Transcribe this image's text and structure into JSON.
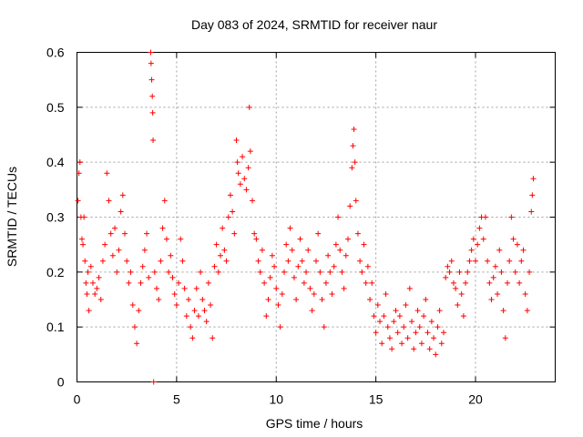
{
  "chart_data": {
    "type": "scatter",
    "title": "Day 083 of 2024, SRMTID for receiver naur",
    "xlabel": "GPS time / hours",
    "ylabel": "SRMTID / TECUs",
    "xlim": [
      0,
      24
    ],
    "ylim": [
      0,
      0.6
    ],
    "x_ticks": [
      0,
      5,
      10,
      15,
      20
    ],
    "y_ticks": [
      0,
      0.1,
      0.2,
      0.3,
      0.4,
      0.5,
      0.6
    ],
    "grid": true,
    "legend": "none",
    "marker": "+",
    "color": "#ff0000",
    "series": [
      {
        "name": "SRMTID",
        "points": [
          [
            0.05,
            0.33
          ],
          [
            0.1,
            0.38
          ],
          [
            0.15,
            0.4
          ],
          [
            0.2,
            0.3
          ],
          [
            0.25,
            0.26
          ],
          [
            0.3,
            0.25
          ],
          [
            0.35,
            0.3
          ],
          [
            0.4,
            0.22
          ],
          [
            0.45,
            0.18
          ],
          [
            0.5,
            0.16
          ],
          [
            0.55,
            0.2
          ],
          [
            0.6,
            0.13
          ],
          [
            0.7,
            0.21
          ],
          [
            0.8,
            0.18
          ],
          [
            0.9,
            0.16
          ],
          [
            1.0,
            0.17
          ],
          [
            1.1,
            0.19
          ],
          [
            1.2,
            0.15
          ],
          [
            1.3,
            0.22
          ],
          [
            1.4,
            0.25
          ],
          [
            1.5,
            0.38
          ],
          [
            1.6,
            0.33
          ],
          [
            1.7,
            0.27
          ],
          [
            1.8,
            0.23
          ],
          [
            1.9,
            0.28
          ],
          [
            2.0,
            0.2
          ],
          [
            2.1,
            0.24
          ],
          [
            2.2,
            0.31
          ],
          [
            2.3,
            0.34
          ],
          [
            2.4,
            0.27
          ],
          [
            2.5,
            0.22
          ],
          [
            2.6,
            0.18
          ],
          [
            2.7,
            0.2
          ],
          [
            2.8,
            0.14
          ],
          [
            2.9,
            0.1
          ],
          [
            3.0,
            0.07
          ],
          [
            3.1,
            0.13
          ],
          [
            3.2,
            0.18
          ],
          [
            3.3,
            0.21
          ],
          [
            3.4,
            0.24
          ],
          [
            3.5,
            0.27
          ],
          [
            3.6,
            0.19
          ],
          [
            3.7,
            0.6
          ],
          [
            3.72,
            0.58
          ],
          [
            3.75,
            0.55
          ],
          [
            3.78,
            0.52
          ],
          [
            3.8,
            0.49
          ],
          [
            3.82,
            0.44
          ],
          [
            3.85,
            0.0
          ],
          [
            3.9,
            0.2
          ],
          [
            4.0,
            0.17
          ],
          [
            4.1,
            0.15
          ],
          [
            4.2,
            0.22
          ],
          [
            4.3,
            0.28
          ],
          [
            4.4,
            0.33
          ],
          [
            4.5,
            0.26
          ],
          [
            4.6,
            0.2
          ],
          [
            4.7,
            0.23
          ],
          [
            4.8,
            0.19
          ],
          [
            4.9,
            0.16
          ],
          [
            5.0,
            0.14
          ],
          [
            5.1,
            0.18
          ],
          [
            5.2,
            0.26
          ],
          [
            5.3,
            0.22
          ],
          [
            5.4,
            0.17
          ],
          [
            5.5,
            0.12
          ],
          [
            5.6,
            0.15
          ],
          [
            5.7,
            0.1
          ],
          [
            5.8,
            0.08
          ],
          [
            5.9,
            0.13
          ],
          [
            6.0,
            0.17
          ],
          [
            6.1,
            0.12
          ],
          [
            6.2,
            0.2
          ],
          [
            6.3,
            0.15
          ],
          [
            6.4,
            0.13
          ],
          [
            6.5,
            0.11
          ],
          [
            6.6,
            0.18
          ],
          [
            6.7,
            0.14
          ],
          [
            6.8,
            0.08
          ],
          [
            6.9,
            0.21
          ],
          [
            7.0,
            0.25
          ],
          [
            7.1,
            0.2
          ],
          [
            7.2,
            0.23
          ],
          [
            7.3,
            0.28
          ],
          [
            7.4,
            0.24
          ],
          [
            7.5,
            0.22
          ],
          [
            7.6,
            0.3
          ],
          [
            7.7,
            0.34
          ],
          [
            7.8,
            0.31
          ],
          [
            7.9,
            0.27
          ],
          [
            8.0,
            0.44
          ],
          [
            8.05,
            0.4
          ],
          [
            8.1,
            0.38
          ],
          [
            8.2,
            0.36
          ],
          [
            8.3,
            0.41
          ],
          [
            8.4,
            0.37
          ],
          [
            8.5,
            0.35
          ],
          [
            8.6,
            0.39
          ],
          [
            8.65,
            0.5
          ],
          [
            8.7,
            0.42
          ],
          [
            8.8,
            0.33
          ],
          [
            8.9,
            0.27
          ],
          [
            9.0,
            0.26
          ],
          [
            9.1,
            0.22
          ],
          [
            9.2,
            0.2
          ],
          [
            9.3,
            0.24
          ],
          [
            9.4,
            0.18
          ],
          [
            9.5,
            0.12
          ],
          [
            9.6,
            0.15
          ],
          [
            9.7,
            0.19
          ],
          [
            9.8,
            0.23
          ],
          [
            9.9,
            0.21
          ],
          [
            10.0,
            0.17
          ],
          [
            10.1,
            0.14
          ],
          [
            10.2,
            0.1
          ],
          [
            10.3,
            0.16
          ],
          [
            10.4,
            0.2
          ],
          [
            10.5,
            0.25
          ],
          [
            10.6,
            0.22
          ],
          [
            10.7,
            0.28
          ],
          [
            10.8,
            0.24
          ],
          [
            10.9,
            0.19
          ],
          [
            11.0,
            0.15
          ],
          [
            11.1,
            0.21
          ],
          [
            11.2,
            0.26
          ],
          [
            11.3,
            0.22
          ],
          [
            11.4,
            0.18
          ],
          [
            11.5,
            0.2
          ],
          [
            11.6,
            0.24
          ],
          [
            11.7,
            0.17
          ],
          [
            11.8,
            0.13
          ],
          [
            11.9,
            0.16
          ],
          [
            12.0,
            0.22
          ],
          [
            12.1,
            0.27
          ],
          [
            12.2,
            0.2
          ],
          [
            12.3,
            0.15
          ],
          [
            12.4,
            0.1
          ],
          [
            12.5,
            0.18
          ],
          [
            12.6,
            0.23
          ],
          [
            12.7,
            0.2
          ],
          [
            12.8,
            0.16
          ],
          [
            12.9,
            0.21
          ],
          [
            13.0,
            0.25
          ],
          [
            13.1,
            0.3
          ],
          [
            13.2,
            0.24
          ],
          [
            13.3,
            0.2
          ],
          [
            13.4,
            0.17
          ],
          [
            13.5,
            0.23
          ],
          [
            13.6,
            0.26
          ],
          [
            13.7,
            0.32
          ],
          [
            13.8,
            0.39
          ],
          [
            13.85,
            0.43
          ],
          [
            13.9,
            0.46
          ],
          [
            13.95,
            0.4
          ],
          [
            14.0,
            0.33
          ],
          [
            14.1,
            0.27
          ],
          [
            14.2,
            0.22
          ],
          [
            14.3,
            0.2
          ],
          [
            14.4,
            0.25
          ],
          [
            14.5,
            0.18
          ],
          [
            14.6,
            0.21
          ],
          [
            14.7,
            0.15
          ],
          [
            14.8,
            0.18
          ],
          [
            14.9,
            0.12
          ],
          [
            15.0,
            0.09
          ],
          [
            15.1,
            0.14
          ],
          [
            15.2,
            0.11
          ],
          [
            15.3,
            0.07
          ],
          [
            15.4,
            0.12
          ],
          [
            15.5,
            0.16
          ],
          [
            15.6,
            0.1
          ],
          [
            15.7,
            0.08
          ],
          [
            15.8,
            0.06
          ],
          [
            15.9,
            0.11
          ],
          [
            16.0,
            0.13
          ],
          [
            16.1,
            0.09
          ],
          [
            16.2,
            0.12
          ],
          [
            16.3,
            0.07
          ],
          [
            16.4,
            0.1
          ],
          [
            16.5,
            0.14
          ],
          [
            16.6,
            0.08
          ],
          [
            16.7,
            0.17
          ],
          [
            16.8,
            0.11
          ],
          [
            16.9,
            0.06
          ],
          [
            17.0,
            0.09
          ],
          [
            17.1,
            0.13
          ],
          [
            17.2,
            0.1
          ],
          [
            17.3,
            0.07
          ],
          [
            17.4,
            0.12
          ],
          [
            17.5,
            0.15
          ],
          [
            17.6,
            0.09
          ],
          [
            17.7,
            0.06
          ],
          [
            17.8,
            0.11
          ],
          [
            17.9,
            0.08
          ],
          [
            18.0,
            0.05
          ],
          [
            18.1,
            0.1
          ],
          [
            18.2,
            0.13
          ],
          [
            18.3,
            0.07
          ],
          [
            18.4,
            0.09
          ],
          [
            18.5,
            0.19
          ],
          [
            18.6,
            0.21
          ],
          [
            18.7,
            0.2
          ],
          [
            18.8,
            0.22
          ],
          [
            18.9,
            0.18
          ],
          [
            19.0,
            0.17
          ],
          [
            19.1,
            0.14
          ],
          [
            19.2,
            0.2
          ],
          [
            19.3,
            0.16
          ],
          [
            19.4,
            0.12
          ],
          [
            19.5,
            0.18
          ],
          [
            19.6,
            0.2
          ],
          [
            19.7,
            0.22
          ],
          [
            19.8,
            0.24
          ],
          [
            19.9,
            0.26
          ],
          [
            20.0,
            0.22
          ],
          [
            20.1,
            0.25
          ],
          [
            20.2,
            0.28
          ],
          [
            20.3,
            0.3
          ],
          [
            20.4,
            0.26
          ],
          [
            20.5,
            0.3
          ],
          [
            20.6,
            0.22
          ],
          [
            20.7,
            0.18
          ],
          [
            20.8,
            0.15
          ],
          [
            20.9,
            0.19
          ],
          [
            21.0,
            0.21
          ],
          [
            21.1,
            0.16
          ],
          [
            21.2,
            0.24
          ],
          [
            21.3,
            0.2
          ],
          [
            21.4,
            0.13
          ],
          [
            21.5,
            0.08
          ],
          [
            21.6,
            0.18
          ],
          [
            21.7,
            0.22
          ],
          [
            21.8,
            0.3
          ],
          [
            21.9,
            0.26
          ],
          [
            22.0,
            0.2
          ],
          [
            22.1,
            0.25
          ],
          [
            22.2,
            0.18
          ],
          [
            22.3,
            0.22
          ],
          [
            22.4,
            0.24
          ],
          [
            22.5,
            0.16
          ],
          [
            22.6,
            0.13
          ],
          [
            22.7,
            0.2
          ],
          [
            22.8,
            0.31
          ],
          [
            22.85,
            0.34
          ],
          [
            22.9,
            0.37
          ]
        ]
      }
    ]
  }
}
